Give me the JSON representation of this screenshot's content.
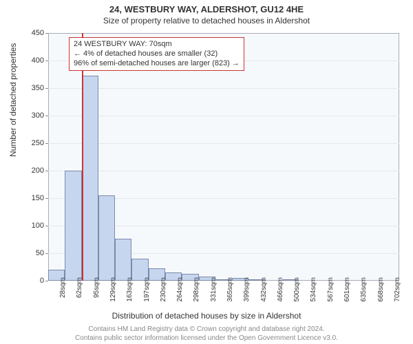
{
  "header": {
    "title": "24, WESTBURY WAY, ALDERSHOT, GU12 4HE",
    "subtitle": "Size of property relative to detached houses in Aldershot"
  },
  "chart": {
    "type": "histogram",
    "ylabel": "Number of detached properties",
    "xlabel": "Distribution of detached houses by size in Aldershot",
    "y_max": 450,
    "y_tick_step": 50,
    "background_color": "#f6f9fc",
    "grid_color": "#e4e8ee",
    "border_color": "#aab",
    "bar_fill": "#c7d6ef",
    "bar_stroke": "#7a8aaa",
    "label_fontsize": 12,
    "tick_fontsize": 11,
    "bars": [
      {
        "label": "28sqm",
        "value": 20
      },
      {
        "label": "62sqm",
        "value": 200
      },
      {
        "label": "95sqm",
        "value": 372
      },
      {
        "label": "129sqm",
        "value": 155
      },
      {
        "label": "163sqm",
        "value": 76
      },
      {
        "label": "197sqm",
        "value": 40
      },
      {
        "label": "230sqm",
        "value": 22
      },
      {
        "label": "264sqm",
        "value": 15
      },
      {
        "label": "298sqm",
        "value": 12
      },
      {
        "label": "331sqm",
        "value": 8
      },
      {
        "label": "365sqm",
        "value": 2
      },
      {
        "label": "399sqm",
        "value": 5
      },
      {
        "label": "432sqm",
        "value": 2
      },
      {
        "label": "466sqm",
        "value": 0
      },
      {
        "label": "500sqm",
        "value": 2
      },
      {
        "label": "534sqm",
        "value": 0
      },
      {
        "label": "567sqm",
        "value": 0
      },
      {
        "label": "601sqm",
        "value": 0
      },
      {
        "label": "635sqm",
        "value": 0
      },
      {
        "label": "668sqm",
        "value": 0
      },
      {
        "label": "702sqm",
        "value": 0
      }
    ],
    "marker": {
      "bin_index": 1,
      "color": "#cc3333",
      "width": 2
    },
    "annotation": {
      "line1": "24 WESTBURY WAY: 70sqm",
      "line2": "← 4% of detached houses are smaller (32)",
      "line3": "96% of semi-detached houses are larger (823) →",
      "border_color": "#cc3333",
      "background": "#ffffff",
      "fontsize": 11
    }
  },
  "footer": {
    "line1": "Contains HM Land Registry data © Crown copyright and database right 2024.",
    "line2": "Contains public sector information licensed under the Open Government Licence v3.0."
  }
}
